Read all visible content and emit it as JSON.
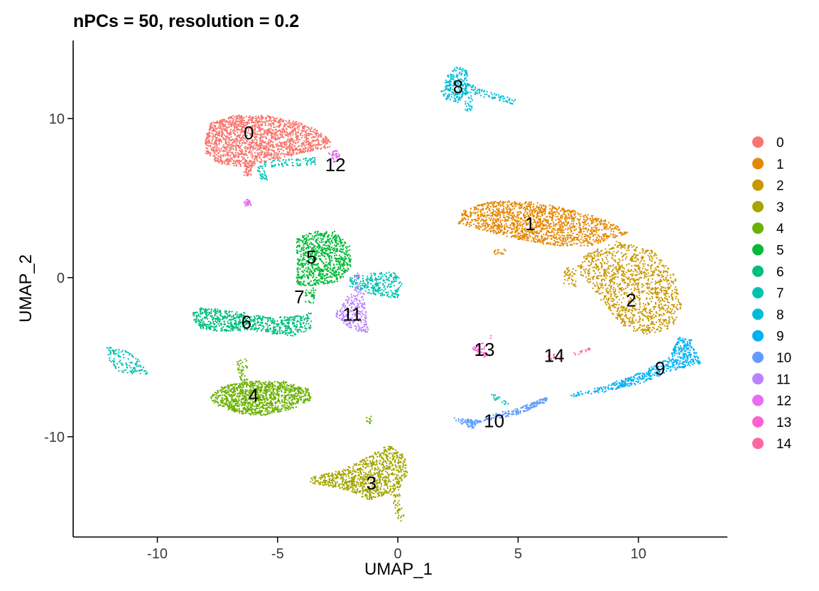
{
  "chart_data": {
    "type": "scatter",
    "title": "nPCs = 50, resolution = 0.2",
    "xlabel": "UMAP_1",
    "ylabel": "UMAP_2",
    "xlim": [
      -13.5,
      13.7
    ],
    "ylim": [
      -16.3,
      14.9
    ],
    "xticks": [
      -10,
      -5,
      0,
      5,
      10
    ],
    "yticks": [
      -10,
      0,
      10
    ],
    "grid": false,
    "legend_position": "right",
    "clusters": [
      {
        "name": "0",
        "color": "#F8766D",
        "label_pos": [
          -6.2,
          9.0
        ]
      },
      {
        "name": "1",
        "color": "#E58700",
        "label_pos": [
          5.5,
          3.3
        ]
      },
      {
        "name": "2",
        "color": "#C99800",
        "label_pos": [
          9.7,
          -1.5
        ]
      },
      {
        "name": "3",
        "color": "#A3A500",
        "label_pos": [
          -1.1,
          -13.0
        ]
      },
      {
        "name": "4",
        "color": "#6BB100",
        "label_pos": [
          -6.0,
          -7.5
        ]
      },
      {
        "name": "5",
        "color": "#00BA38",
        "label_pos": [
          -3.6,
          1.2
        ]
      },
      {
        "name": "6",
        "color": "#00BF7D",
        "label_pos": [
          -6.3,
          -2.9
        ]
      },
      {
        "name": "7",
        "color": "#00C0AF",
        "label_pos": [
          -4.1,
          -1.3
        ]
      },
      {
        "name": "8",
        "color": "#00BCD8",
        "label_pos": [
          2.5,
          11.9
        ]
      },
      {
        "name": "9",
        "color": "#00B0F6",
        "label_pos": [
          10.9,
          -5.8
        ]
      },
      {
        "name": "10",
        "color": "#619CFF",
        "label_pos": [
          4.0,
          -9.1
        ]
      },
      {
        "name": "11",
        "color": "#B983FF",
        "label_pos": [
          -1.9,
          -2.4
        ]
      },
      {
        "name": "12",
        "color": "#E76BF3",
        "label_pos": [
          -2.6,
          7.0
        ]
      },
      {
        "name": "13",
        "color": "#FD61D1",
        "label_pos": [
          3.6,
          -4.6
        ]
      },
      {
        "name": "14",
        "color": "#FF67A4",
        "label_pos": [
          6.5,
          -5.0
        ]
      }
    ],
    "blobs": [
      {
        "cluster": "0",
        "points": [
          [
            -8.0,
            8.9
          ],
          [
            -8.0,
            7.8
          ],
          [
            -7.5,
            7.2
          ],
          [
            -6.8,
            7.0
          ],
          [
            -6.2,
            6.9
          ],
          [
            -5.5,
            7.3
          ],
          [
            -4.5,
            7.6
          ],
          [
            -3.4,
            8.0
          ],
          [
            -2.8,
            8.2
          ],
          [
            -2.8,
            8.6
          ],
          [
            -3.2,
            9.2
          ],
          [
            -4.2,
            9.8
          ],
          [
            -5.5,
            10.2
          ],
          [
            -6.8,
            10.2
          ],
          [
            -7.8,
            9.7
          ]
        ],
        "n": 1700
      },
      {
        "cluster": "0",
        "points": [
          [
            -6.4,
            7.2
          ],
          [
            -6.0,
            7.2
          ],
          [
            -6.1,
            6.4
          ],
          [
            -6.4,
            6.4
          ]
        ],
        "n": 40
      },
      {
        "cluster": "12",
        "points": [
          [
            -2.9,
            7.9
          ],
          [
            -2.5,
            8.0
          ],
          [
            -2.3,
            7.4
          ],
          [
            -2.7,
            7.2
          ]
        ],
        "n": 40
      },
      {
        "cluster": "12",
        "points": [
          [
            -6.4,
            4.9
          ],
          [
            -6.1,
            4.9
          ],
          [
            -6.1,
            4.5
          ],
          [
            -6.4,
            4.5
          ]
        ],
        "n": 25
      },
      {
        "cluster": "7",
        "points": [
          [
            -5.6,
            7.3
          ],
          [
            -3.2,
            7.6
          ],
          [
            -3.4,
            7.1
          ],
          [
            -5.5,
            6.9
          ]
        ],
        "n": 70
      },
      {
        "cluster": "7",
        "points": [
          [
            -5.9,
            7.0
          ],
          [
            -5.6,
            7.0
          ],
          [
            -5.4,
            6.1
          ],
          [
            -5.7,
            6.1
          ]
        ],
        "n": 30
      },
      {
        "cluster": "8",
        "points": [
          [
            1.8,
            11.7
          ],
          [
            2.1,
            12.8
          ],
          [
            2.5,
            13.3
          ],
          [
            2.9,
            13.0
          ],
          [
            2.9,
            11.6
          ],
          [
            2.5,
            11.0
          ],
          [
            2.0,
            11.2
          ]
        ],
        "n": 220
      },
      {
        "cluster": "8",
        "points": [
          [
            2.9,
            12.2
          ],
          [
            4.9,
            11.2
          ],
          [
            4.8,
            10.9
          ],
          [
            2.9,
            11.6
          ]
        ],
        "n": 80
      },
      {
        "cluster": "8",
        "points": [
          [
            2.8,
            11.6
          ],
          [
            3.1,
            11.6
          ],
          [
            3.1,
            10.4
          ],
          [
            2.8,
            10.4
          ]
        ],
        "n": 25
      },
      {
        "cluster": "1",
        "points": [
          [
            2.5,
            3.4
          ],
          [
            2.7,
            4.2
          ],
          [
            3.8,
            4.8
          ],
          [
            5.5,
            4.8
          ],
          [
            7.2,
            4.3
          ],
          [
            8.7,
            3.6
          ],
          [
            9.6,
            2.8
          ],
          [
            8.0,
            2.0
          ],
          [
            6.5,
            2.0
          ],
          [
            5.0,
            2.4
          ],
          [
            3.5,
            3.0
          ]
        ],
        "n": 1500
      },
      {
        "cluster": "1",
        "points": [
          [
            4.0,
            1.8
          ],
          [
            4.5,
            1.8
          ],
          [
            4.5,
            1.4
          ],
          [
            4.0,
            1.4
          ]
        ],
        "n": 15
      },
      {
        "cluster": "2",
        "points": [
          [
            7.8,
            1.5
          ],
          [
            9.1,
            2.3
          ],
          [
            10.6,
            1.7
          ],
          [
            11.5,
            0.2
          ],
          [
            11.8,
            -1.8
          ],
          [
            11.4,
            -3.2
          ],
          [
            10.3,
            -3.6
          ],
          [
            9.5,
            -3.2
          ],
          [
            8.8,
            -2.3
          ],
          [
            8.1,
            -0.7
          ],
          [
            7.4,
            0.5
          ]
        ],
        "n": 1200
      },
      {
        "cluster": "2",
        "points": [
          [
            6.9,
            0.7
          ],
          [
            7.4,
            0.5
          ],
          [
            7.4,
            -0.6
          ],
          [
            6.9,
            -0.4
          ]
        ],
        "n": 40
      },
      {
        "cluster": "3",
        "points": [
          [
            -3.7,
            -12.6
          ],
          [
            -2.2,
            -12.0
          ],
          [
            -1.2,
            -11.2
          ],
          [
            -0.4,
            -10.5
          ],
          [
            0.3,
            -11.2
          ],
          [
            0.4,
            -12.4
          ],
          [
            0.0,
            -13.4
          ],
          [
            -1.2,
            -14.0
          ],
          [
            -2.0,
            -13.4
          ],
          [
            -3.7,
            -12.9
          ]
        ],
        "n": 900
      },
      {
        "cluster": "3",
        "points": [
          [
            -0.3,
            -13.6
          ],
          [
            0.1,
            -13.6
          ],
          [
            0.3,
            -15.4
          ],
          [
            0.0,
            -15.4
          ]
        ],
        "n": 40
      },
      {
        "cluster": "4",
        "points": [
          [
            -7.8,
            -7.5
          ],
          [
            -7.3,
            -6.8
          ],
          [
            -6.3,
            -6.5
          ],
          [
            -4.8,
            -6.5
          ],
          [
            -3.7,
            -7.0
          ],
          [
            -3.6,
            -7.7
          ],
          [
            -4.3,
            -8.2
          ],
          [
            -5.6,
            -8.7
          ],
          [
            -6.8,
            -8.5
          ],
          [
            -7.6,
            -8.0
          ]
        ],
        "n": 1100
      },
      {
        "cluster": "4",
        "points": [
          [
            -6.7,
            -5.0
          ],
          [
            -6.3,
            -5.0
          ],
          [
            -6.2,
            -6.8
          ],
          [
            -6.6,
            -6.8
          ]
        ],
        "n": 45
      },
      {
        "cluster": "4",
        "points": [
          [
            -1.3,
            -8.7
          ],
          [
            -1.1,
            -8.7
          ],
          [
            -1.1,
            -9.2
          ],
          [
            -1.3,
            -9.2
          ]
        ],
        "n": 10
      },
      {
        "cluster": "5",
        "points": [
          [
            -4.2,
            1.0
          ],
          [
            -4.2,
            2.5
          ],
          [
            -3.5,
            2.9
          ],
          [
            -2.6,
            2.9
          ],
          [
            -2.0,
            2.0
          ],
          [
            -1.9,
            0.8
          ],
          [
            -2.4,
            -0.2
          ],
          [
            -3.0,
            -0.4
          ],
          [
            -3.6,
            -0.5
          ],
          [
            -4.2,
            -0.5
          ]
        ],
        "n": 800
      },
      {
        "cluster": "5",
        "points": [
          [
            -3.8,
            -0.5
          ],
          [
            -3.4,
            -0.5
          ],
          [
            -3.5,
            -1.6
          ],
          [
            -3.9,
            -1.6
          ]
        ],
        "n": 30
      },
      {
        "cluster": "6",
        "points": [
          [
            -8.6,
            -2.3
          ],
          [
            -8.2,
            -1.9
          ],
          [
            -7.3,
            -2.0
          ],
          [
            -6.4,
            -2.2
          ],
          [
            -5.2,
            -2.5
          ],
          [
            -4.3,
            -2.4
          ],
          [
            -3.6,
            -2.2
          ],
          [
            -3.6,
            -3.2
          ],
          [
            -4.3,
            -3.7
          ],
          [
            -5.3,
            -3.5
          ],
          [
            -6.3,
            -3.3
          ],
          [
            -7.3,
            -3.4
          ],
          [
            -8.3,
            -3.2
          ]
        ],
        "n": 700
      },
      {
        "cluster": "7",
        "points": [
          [
            -2.0,
            0.1
          ],
          [
            -1.0,
            0.3
          ],
          [
            -0.2,
            0.4
          ],
          [
            0.2,
            -0.2
          ],
          [
            0.0,
            -1.3
          ],
          [
            -1.0,
            -1.1
          ],
          [
            -2.0,
            -0.6
          ]
        ],
        "n": 250
      },
      {
        "cluster": "7",
        "points": [
          [
            -12.1,
            -4.3
          ],
          [
            -11.3,
            -4.6
          ],
          [
            -10.8,
            -5.1
          ],
          [
            -10.3,
            -6.1
          ],
          [
            -11.5,
            -6.0
          ],
          [
            -12.0,
            -5.4
          ]
        ],
        "n": 120
      },
      {
        "cluster": "7",
        "points": [
          [
            3.9,
            -7.3
          ],
          [
            4.7,
            -7.8
          ],
          [
            4.6,
            -8.1
          ],
          [
            3.9,
            -7.6
          ]
        ],
        "n": 18
      },
      {
        "cluster": "11",
        "points": [
          [
            -2.0,
            -1.0
          ],
          [
            -1.4,
            -1.0
          ],
          [
            -1.2,
            -3.5
          ],
          [
            -1.9,
            -3.3
          ],
          [
            -2.6,
            -2.4
          ],
          [
            -2.5,
            -2.0
          ]
        ],
        "n": 220
      },
      {
        "cluster": "11",
        "points": [
          [
            -1.8,
            -1.0
          ],
          [
            -1.5,
            -1.0
          ],
          [
            -1.6,
            0.3
          ],
          [
            -1.8,
            0.3
          ]
        ],
        "n": 25
      },
      {
        "cluster": "9",
        "points": [
          [
            7.2,
            -7.5
          ],
          [
            8.6,
            -7.2
          ],
          [
            10.2,
            -6.6
          ],
          [
            11.3,
            -5.9
          ],
          [
            12.6,
            -5.4
          ],
          [
            12.5,
            -5.0
          ],
          [
            12.2,
            -3.9
          ],
          [
            11.7,
            -3.7
          ],
          [
            11.3,
            -5.0
          ],
          [
            10.2,
            -5.9
          ],
          [
            8.4,
            -6.9
          ],
          [
            7.2,
            -7.3
          ]
        ],
        "n": 500
      },
      {
        "cluster": "10",
        "points": [
          [
            2.3,
            -8.8
          ],
          [
            3.6,
            -9.0
          ],
          [
            5.0,
            -8.6
          ],
          [
            6.2,
            -7.8
          ],
          [
            6.2,
            -7.5
          ],
          [
            5.0,
            -8.2
          ],
          [
            3.9,
            -8.6
          ],
          [
            3.1,
            -9.5
          ],
          [
            2.5,
            -9.1
          ]
        ],
        "n": 250
      },
      {
        "cluster": "13",
        "points": [
          [
            3.0,
            -4.4
          ],
          [
            3.7,
            -4.0
          ],
          [
            3.9,
            -3.5
          ],
          [
            3.8,
            -5.1
          ],
          [
            3.2,
            -4.8
          ]
        ],
        "n": 40
      },
      {
        "cluster": "14",
        "points": [
          [
            6.2,
            -4.8
          ],
          [
            6.8,
            -4.8
          ],
          [
            6.8,
            -5.2
          ],
          [
            6.2,
            -5.2
          ]
        ],
        "n": 15
      },
      {
        "cluster": "14",
        "points": [
          [
            7.3,
            -4.6
          ],
          [
            8.0,
            -4.4
          ],
          [
            8.0,
            -4.7
          ],
          [
            7.3,
            -4.9
          ]
        ],
        "n": 14
      }
    ]
  }
}
